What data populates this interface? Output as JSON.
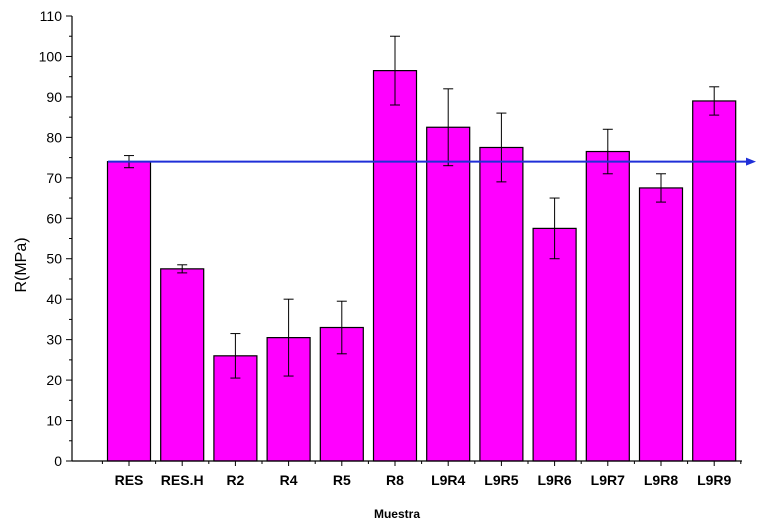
{
  "chart_data": {
    "type": "bar",
    "xlabel": "Muestra",
    "ylabel": "R(MPa)",
    "ylim": [
      0,
      110
    ],
    "yticks": [
      "0",
      "10",
      "20",
      "30",
      "40",
      "50",
      "60",
      "70",
      "80",
      "90",
      "100",
      "110"
    ],
    "categories": [
      "RES",
      "RES.H",
      "R2",
      "R4",
      "R5",
      "R8",
      "L9R4",
      "L9R5",
      "L9R6",
      "L9R7",
      "L9R8",
      "L9R9"
    ],
    "values": [
      74,
      47.5,
      26,
      30.5,
      33,
      96.5,
      82.5,
      77.5,
      57.5,
      76.5,
      67.5,
      89
    ],
    "errors": [
      1.5,
      1,
      5.5,
      9.5,
      6.5,
      8.5,
      9.5,
      8.5,
      7.5,
      5.5,
      3.5,
      3.5
    ],
    "reference_line": {
      "value": 74,
      "color": "#1f2fd8",
      "arrow": "right"
    },
    "bar_color": "#ff00ff",
    "grid": false,
    "legend": "none"
  }
}
